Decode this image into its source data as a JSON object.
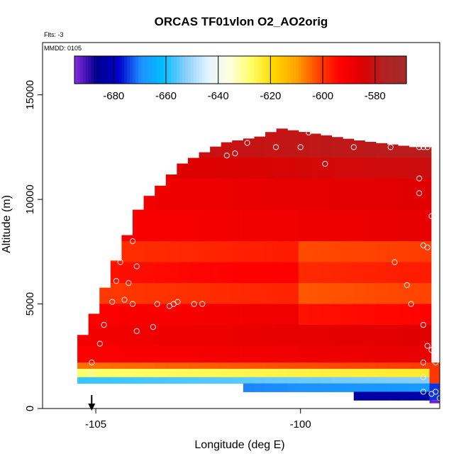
{
  "chart_data": {
    "type": "heatmap",
    "title": "ORCAS TF01vlon O2_AO2orig",
    "flights_label": "Flts: -3",
    "date_label": "MMDD: 0105",
    "xlabel": "Longitude (deg E)",
    "ylabel": "Altitude (m)",
    "xlim": [
      -106.3,
      -96.6
    ],
    "ylim": [
      0,
      17500
    ],
    "x_ticks": [
      -105,
      -100
    ],
    "y_ticks": [
      0,
      5000,
      10000,
      15000
    ],
    "grid": false,
    "colorbar": {
      "placement": "top-inside",
      "range": [
        -695,
        -568
      ],
      "ticks": [
        -680,
        -660,
        -640,
        -620,
        -600,
        -580
      ],
      "colors": [
        "#8a2be2",
        "#00008b",
        "#0000cd",
        "#1e90ff",
        "#00bfff",
        "#87cefa",
        "#e0f4ff",
        "#ffffe0",
        "#ffff66",
        "#ffd700",
        "#ffa500",
        "#ff4500",
        "#ff0000",
        "#dd0000",
        "#b22222",
        "#a52a2a"
      ]
    },
    "arrow_marker_x": -105.1,
    "profile_top": [
      [
        -105.4,
        3200
      ],
      [
        -105.0,
        4700
      ],
      [
        -104.5,
        7100
      ],
      [
        -103.9,
        9800
      ],
      [
        -103.4,
        10700
      ],
      [
        -102.9,
        11700
      ],
      [
        -102.4,
        12200
      ],
      [
        -101.9,
        12700
      ],
      [
        -101.0,
        13000
      ],
      [
        -100.5,
        13400
      ],
      [
        -99.5,
        13100
      ],
      [
        -98.5,
        12800
      ],
      [
        -97.2,
        12500
      ]
    ],
    "layers": [
      {
        "alt": [
          12000,
          13400
        ],
        "value": -580
      },
      {
        "alt": [
          11000,
          12000
        ],
        "value": -584
      },
      {
        "alt": [
          9500,
          11000
        ],
        "value": -588
      },
      {
        "alt": [
          8000,
          9500
        ],
        "value": -590
      },
      {
        "alt": [
          7000,
          8000
        ],
        "value": -597
      },
      {
        "alt": [
          6000,
          7000
        ],
        "value": -593
      },
      {
        "alt": [
          5000,
          6000
        ],
        "value": -598
      },
      {
        "alt": [
          4000,
          5000
        ],
        "value": -590
      },
      {
        "alt": [
          3000,
          4000
        ],
        "value": -588
      },
      {
        "alt": [
          2200,
          3000
        ],
        "value": -590
      },
      {
        "alt": [
          1900,
          2200
        ],
        "value": -603
      },
      {
        "alt": [
          1500,
          1900
        ],
        "value": -625
      },
      {
        "alt": [
          1200,
          1500
        ],
        "value": -655
      },
      {
        "alt": [
          800,
          1200
        ],
        "value": -670
      },
      {
        "alt": [
          400,
          800
        ],
        "value": -685
      }
    ],
    "points": [
      [
        -105.1,
        2200
      ],
      [
        -105.1,
        1700
      ],
      [
        -104.9,
        3100
      ],
      [
        -104.8,
        4000
      ],
      [
        -104.6,
        5100
      ],
      [
        -104.5,
        6100
      ],
      [
        -104.4,
        7000
      ],
      [
        -104.3,
        5200
      ],
      [
        -104.2,
        6000
      ],
      [
        -104.1,
        8000
      ],
      [
        -104.1,
        5000
      ],
      [
        -104.0,
        6800
      ],
      [
        -104.0,
        3700
      ],
      [
        -103.6,
        3900
      ],
      [
        -103.5,
        5000
      ],
      [
        -103.2,
        4900
      ],
      [
        -103.1,
        5000
      ],
      [
        -103.0,
        5100
      ],
      [
        -102.6,
        5000
      ],
      [
        -102.4,
        5000
      ],
      [
        -101.8,
        12100
      ],
      [
        -101.6,
        12200
      ],
      [
        -101.3,
        12700
      ],
      [
        -100.6,
        12500
      ],
      [
        -100.0,
        12500
      ],
      [
        -99.8,
        13200
      ],
      [
        -99.4,
        11700
      ],
      [
        -98.7,
        12500
      ],
      [
        -97.8,
        12500
      ],
      [
        -97.7,
        7000
      ],
      [
        -97.4,
        5900
      ],
      [
        -97.3,
        5000
      ],
      [
        -97.1,
        12500
      ],
      [
        -97.0,
        12500
      ],
      [
        -96.9,
        12500
      ],
      [
        -97.1,
        11000
      ],
      [
        -97.1,
        10300
      ],
      [
        -96.8,
        9200
      ],
      [
        -97.0,
        7800
      ],
      [
        -96.9,
        7700
      ],
      [
        -97.0,
        4000
      ],
      [
        -96.9,
        3000
      ],
      [
        -96.8,
        2800
      ],
      [
        -97.0,
        2200
      ],
      [
        -96.7,
        2200
      ],
      [
        -97.0,
        1500
      ],
      [
        -97.0,
        800
      ],
      [
        -96.8,
        700
      ],
      [
        -96.7,
        800
      ],
      [
        -96.6,
        500
      ]
    ]
  }
}
